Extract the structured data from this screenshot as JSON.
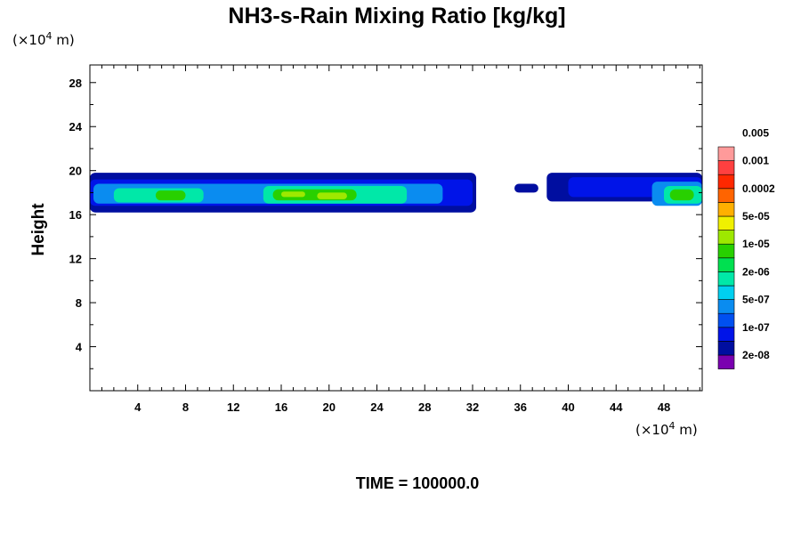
{
  "chart_data": {
    "type": "heatmap",
    "title": "NH3-s-Rain Mixing Ratio [kg/kg]",
    "xlabel": "",
    "ylabel": "Height",
    "x_unit_prefix": "(×10",
    "x_unit_exp": "4",
    "x_unit_suffix": " m)",
    "y_unit_prefix": "(×10",
    "y_unit_exp": "4",
    "y_unit_suffix": " m)",
    "xlim": [
      0,
      51.2
    ],
    "ylim": [
      0,
      29.6
    ],
    "xticks": [
      4,
      8,
      12,
      16,
      20,
      24,
      28,
      32,
      36,
      40,
      44,
      48
    ],
    "yticks": [
      4,
      8,
      12,
      16,
      20,
      24,
      28
    ],
    "colorbar": {
      "colors": [
        "#7a00b0",
        "#000ea0",
        "#0014e8",
        "#0050f0",
        "#0a8cf0",
        "#00d0f0",
        "#00e8a8",
        "#00e050",
        "#28d000",
        "#9ee800",
        "#f0f000",
        "#ffb000",
        "#ff6400",
        "#ff2800",
        "#ff4040",
        "#ff9a9a"
      ],
      "labels": [
        "2e-08",
        "1e-07",
        "5e-07",
        "2e-06",
        "1e-05",
        "5e-05",
        "0.0002",
        "0.001",
        "0.005"
      ]
    },
    "bands": [
      {
        "x": [
          0,
          32.3
        ],
        "y": [
          16.2,
          19.8
        ],
        "level": 1
      },
      {
        "x": [
          0,
          32.0
        ],
        "y": [
          16.8,
          19.2
        ],
        "level": 2
      },
      {
        "x": [
          0.3,
          29.5
        ],
        "y": [
          17.0,
          18.8
        ],
        "level": 4
      },
      {
        "x": [
          2,
          9.5
        ],
        "y": [
          17.1,
          18.4
        ],
        "level": 6
      },
      {
        "x": [
          14.5,
          26.5
        ],
        "y": [
          17.0,
          18.6
        ],
        "level": 6
      },
      {
        "x": [
          5.5,
          8
        ],
        "y": [
          17.3,
          18.2
        ],
        "level": 8
      },
      {
        "x": [
          15.3,
          22.3
        ],
        "y": [
          17.3,
          18.3
        ],
        "level": 8
      },
      {
        "x": [
          16,
          18
        ],
        "y": [
          17.6,
          18.1
        ],
        "level": 9
      },
      {
        "x": [
          19,
          21.5
        ],
        "y": [
          17.4,
          18.0
        ],
        "level": 9
      },
      {
        "x": [
          35.5,
          37.5
        ],
        "y": [
          18.0,
          18.8
        ],
        "level": 1
      },
      {
        "x": [
          38.2,
          51.2
        ],
        "y": [
          17.2,
          19.8
        ],
        "level": 1
      },
      {
        "x": [
          40,
          51.2
        ],
        "y": [
          17.6,
          19.4
        ],
        "level": 2
      },
      {
        "x": [
          47,
          51.2
        ],
        "y": [
          16.8,
          19.0
        ],
        "level": 4
      },
      {
        "x": [
          48,
          51.2
        ],
        "y": [
          17.0,
          18.6
        ],
        "level": 6
      },
      {
        "x": [
          48.5,
          50.5
        ],
        "y": [
          17.3,
          18.3
        ],
        "level": 8
      }
    ],
    "time_label": "TIME = 100000.0"
  }
}
